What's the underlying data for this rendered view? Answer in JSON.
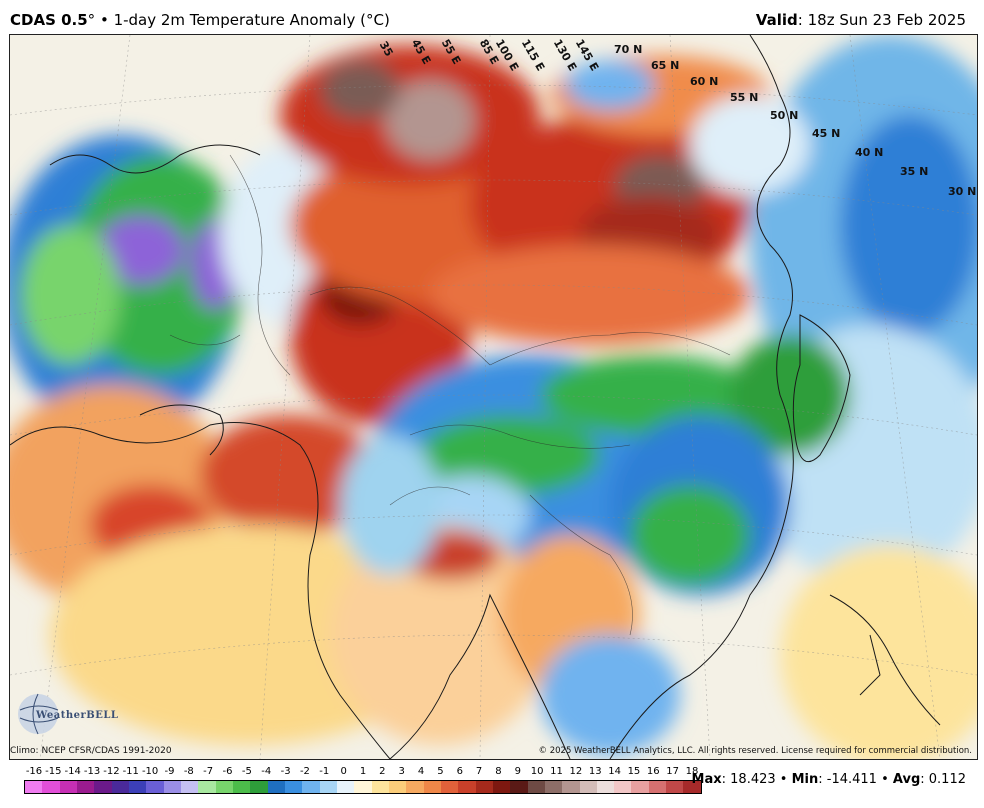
{
  "header": {
    "model": "CDAS 0.5",
    "degree": "°",
    "separator": " • ",
    "product": "1-day 2m Temperature Anomaly (°C)",
    "valid_label": "Valid",
    "valid_value": ": 18z Sun 23 Feb 2025"
  },
  "map": {
    "lat_labels": [
      "70 N",
      "65 N",
      "60 N",
      "55 N",
      "50 N",
      "45 N",
      "40 N",
      "35 N",
      "30 N"
    ],
    "lon_labels": [
      "35",
      "45 E",
      "55 E",
      "85 E",
      "100 E",
      "115 E",
      "130 E",
      "145 E"
    ],
    "logo_text": "WeatherBELL",
    "colors": {
      "deep_red": "#8b1a0c",
      "red": "#c9301c",
      "orange": "#e8713f",
      "light_orange": "#f6b183",
      "yellow": "#fbe49b",
      "white": "#f7f7f2",
      "light_blue": "#9fd3ef",
      "blue": "#2f7fd6",
      "green": "#35b04a",
      "purple": "#8d63d8",
      "brown": "#7a5b54"
    }
  },
  "footer": {
    "climo": "Climo: NCEP CFSR/CDAS 1991-2020",
    "copyright": "© 2025 WeatherBELL Analytics, LLC. All rights reserved. License required for commercial distribution."
  },
  "colorbar": {
    "ticks": [
      "-16",
      "-15",
      "-14",
      "-13",
      "-12",
      "-11",
      "-10",
      "-9",
      "-8",
      "-7",
      "-6",
      "-5",
      "-4",
      "-3",
      "-2",
      "-1",
      "0",
      "1",
      "2",
      "3",
      "4",
      "5",
      "6",
      "7",
      "8",
      "9",
      "10",
      "11",
      "12",
      "13",
      "14",
      "15",
      "16",
      "17",
      "18"
    ],
    "colors": [
      "#f07cf0",
      "#e24fd8",
      "#c62fb4",
      "#9a1b8f",
      "#6b1a8a",
      "#4a2a9a",
      "#3c3fb8",
      "#6a5fd6",
      "#9a8ee6",
      "#c4bff2",
      "#a8e8a0",
      "#78d46c",
      "#4cbc4a",
      "#2e9e3a",
      "#1f6fc0",
      "#3a8fe0",
      "#6fb3ef",
      "#a7d5f5",
      "#e7f3fb",
      "#fff6d9",
      "#fde49c",
      "#fbcd7a",
      "#f6a960",
      "#ef8748",
      "#e1613a",
      "#c9402a",
      "#a52a1c",
      "#7d1810",
      "#5a1a16",
      "#6e4a44",
      "#8d6e68",
      "#b39590",
      "#d3bcb8",
      "#ecdedc",
      "#f2c7c7",
      "#e8a0a0",
      "#d67070",
      "#c04848",
      "#a62a2a"
    ],
    "stats_max_label": "Max",
    "stats_max": ": 18.423",
    "stats_min_label": "Min",
    "stats_min": ": -14.411",
    "stats_avg_label": "Avg",
    "stats_avg": ": 0.112",
    "stats_sep": " • "
  }
}
